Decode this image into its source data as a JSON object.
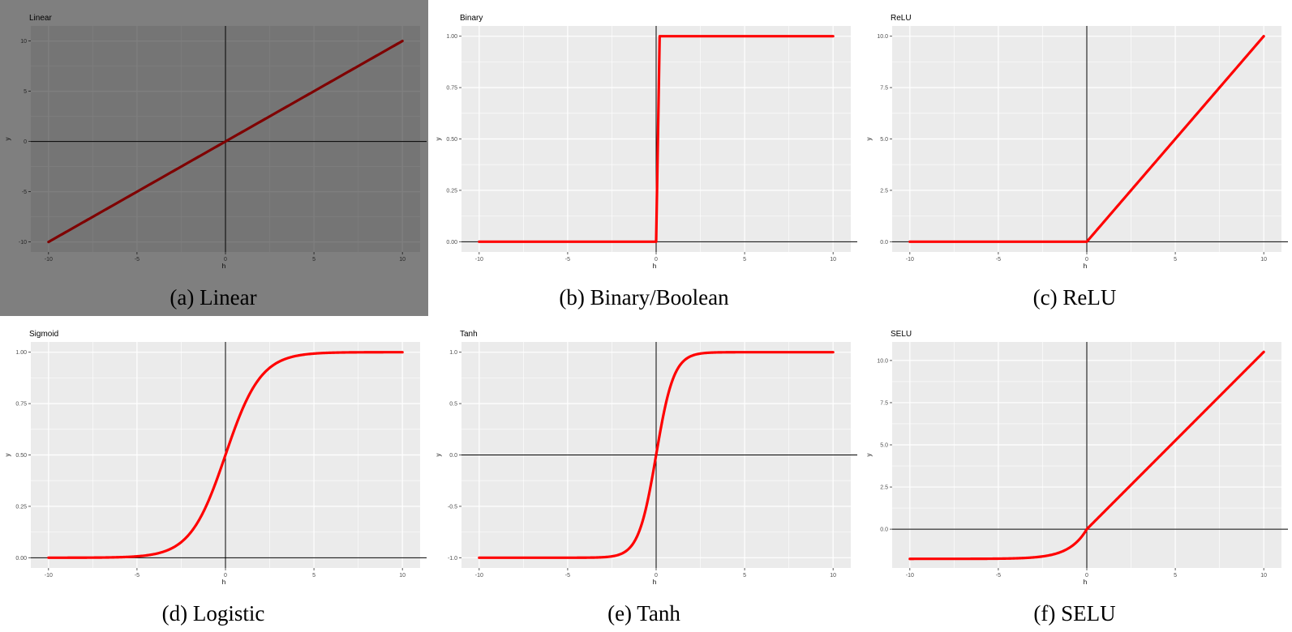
{
  "chart_data": [
    {
      "type": "line",
      "title": "Linear",
      "caption": "(a) Linear",
      "func": "linear",
      "xlabel": "h",
      "ylabel": "y",
      "xlim": [
        -11,
        11
      ],
      "ylim": [
        -11,
        11.5
      ],
      "xticks": [
        -10,
        -5,
        0,
        5,
        10
      ],
      "yticks": [
        -10,
        -5,
        0,
        5,
        10
      ],
      "xtick_labels": [
        "-10",
        "-5",
        "0",
        "5",
        "10"
      ],
      "ytick_labels": [
        "-10",
        "-5",
        "0",
        "5",
        "10"
      ],
      "x": [
        -10,
        10
      ],
      "y": [
        -10,
        10
      ],
      "dimmed": true
    },
    {
      "type": "line",
      "title": "Binary",
      "caption": "(b) Binary/Boolean",
      "func": "binary",
      "xlabel": "h",
      "ylabel": "y",
      "xlim": [
        -11,
        11
      ],
      "ylim": [
        -0.05,
        1.05
      ],
      "xticks": [
        -10,
        -5,
        0,
        5,
        10
      ],
      "yticks": [
        0,
        0.25,
        0.5,
        0.75,
        1.0
      ],
      "xtick_labels": [
        "-10",
        "-5",
        "0",
        "5",
        "10"
      ],
      "ytick_labels": [
        "0.00",
        "0.25",
        "0.50",
        "0.75",
        "1.00"
      ],
      "x": [
        -10,
        0,
        0.2,
        10
      ],
      "y": [
        0,
        0,
        1,
        1
      ]
    },
    {
      "type": "line",
      "title": "ReLU",
      "caption": "(c) ReLU",
      "func": "relu",
      "xlabel": "h",
      "ylabel": "y",
      "xlim": [
        -11,
        11
      ],
      "ylim": [
        -0.5,
        10.5
      ],
      "xticks": [
        -10,
        -5,
        0,
        5,
        10
      ],
      "yticks": [
        0,
        2.5,
        5,
        7.5,
        10
      ],
      "xtick_labels": [
        "-10",
        "-5",
        "0",
        "5",
        "10"
      ],
      "ytick_labels": [
        "0.0",
        "2.5",
        "5.0",
        "7.5",
        "10.0"
      ],
      "x": [
        -10,
        0,
        10
      ],
      "y": [
        0,
        0,
        10
      ]
    },
    {
      "type": "line",
      "title": "Sigmoid",
      "caption": "(d) Logistic",
      "func": "sigmoid",
      "xlabel": "h",
      "ylabel": "y",
      "xlim": [
        -11,
        11
      ],
      "ylim": [
        -0.05,
        1.05
      ],
      "xticks": [
        -10,
        -5,
        0,
        5,
        10
      ],
      "yticks": [
        0,
        0.25,
        0.5,
        0.75,
        1.0
      ],
      "xtick_labels": [
        "-10",
        "-5",
        "0",
        "5",
        "10"
      ],
      "ytick_labels": [
        "0.00",
        "0.25",
        "0.50",
        "0.75",
        "1.00"
      ],
      "x": [
        -10,
        -5,
        -2,
        0,
        2,
        5,
        10
      ],
      "y": [
        0.0,
        0.007,
        0.119,
        0.5,
        0.881,
        0.993,
        1.0
      ]
    },
    {
      "type": "line",
      "title": "Tanh",
      "caption": "(e) Tanh",
      "func": "tanh",
      "xlabel": "h",
      "ylabel": "y",
      "xlim": [
        -11,
        11
      ],
      "ylim": [
        -1.1,
        1.1
      ],
      "xticks": [
        -10,
        -5,
        0,
        5,
        10
      ],
      "yticks": [
        -1.0,
        -0.5,
        0,
        0.5,
        1.0
      ],
      "xtick_labels": [
        "-10",
        "-5",
        "0",
        "5",
        "10"
      ],
      "ytick_labels": [
        "-1.0",
        "-0.5",
        "0.0",
        "0.5",
        "1.0"
      ],
      "x": [
        -10,
        -2,
        -1,
        0,
        1,
        2,
        10
      ],
      "y": [
        -1.0,
        -0.964,
        -0.762,
        0,
        0.762,
        0.964,
        1.0
      ]
    },
    {
      "type": "line",
      "title": "SELU",
      "caption": "(f) SELU",
      "func": "selu",
      "xlabel": "h",
      "ylabel": "y",
      "xlim": [
        -11,
        11
      ],
      "ylim": [
        -2.3,
        11.1
      ],
      "xticks": [
        -10,
        -5,
        0,
        5,
        10
      ],
      "yticks": [
        0,
        2.5,
        5,
        7.5,
        10
      ],
      "xtick_labels": [
        "-10",
        "-5",
        "0",
        "5",
        "10"
      ],
      "ytick_labels": [
        "0.0",
        "2.5",
        "5.0",
        "7.5",
        "10.0"
      ],
      "x": [
        -10,
        -5,
        -2,
        0,
        5,
        10
      ],
      "y": [
        -1.758,
        -1.746,
        -1.52,
        0,
        5.254,
        10.507
      ]
    }
  ],
  "colors": {
    "line": "#ff0000",
    "panel_bg": "#ebebeb",
    "grid": "#ffffff",
    "axis_line": "#000000"
  }
}
